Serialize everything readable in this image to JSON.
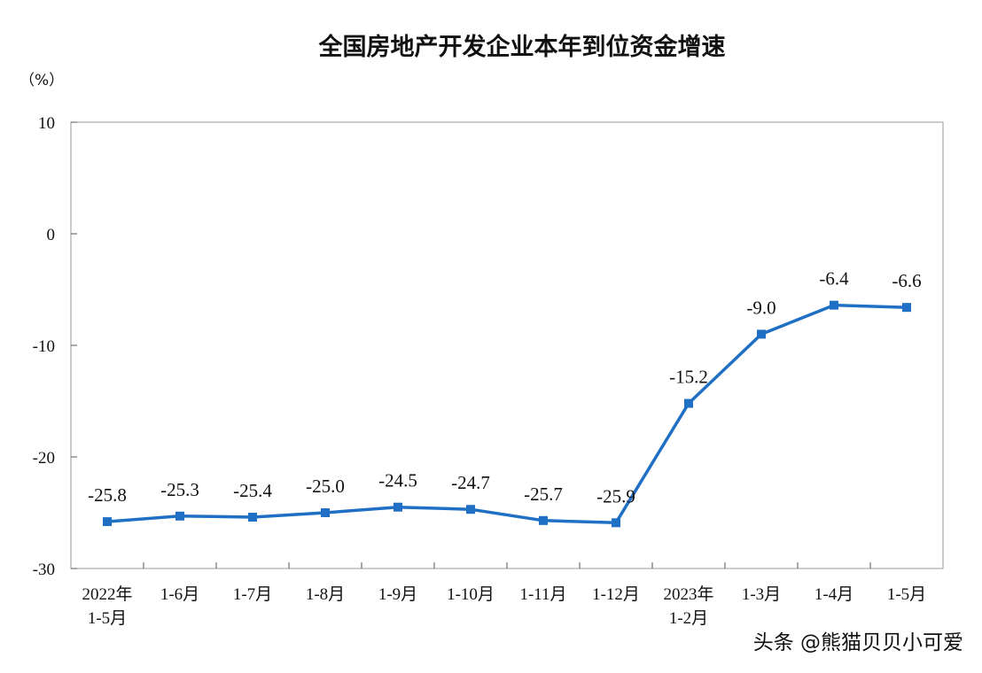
{
  "chart_data": {
    "type": "line",
    "title": "全国房地产开发企业本年到位资金增速",
    "unit": "（%）",
    "categories": [
      [
        "2022年",
        "1-5月"
      ],
      [
        "1-6月"
      ],
      [
        "1-7月"
      ],
      [
        "1-8月"
      ],
      [
        "1-9月"
      ],
      [
        "1-10月"
      ],
      [
        "1-11月"
      ],
      [
        "1-12月"
      ],
      [
        "2023年",
        "1-2月"
      ],
      [
        "1-3月"
      ],
      [
        "1-4月"
      ],
      [
        "1-5月"
      ]
    ],
    "values": [
      -25.8,
      -25.3,
      -25.4,
      -25.0,
      -24.5,
      -24.7,
      -25.7,
      -25.9,
      -15.2,
      -9.0,
      -6.4,
      -6.6
    ],
    "data_labels": [
      "-25.8",
      "-25.3",
      "-25.4",
      "-25.0",
      "-24.5",
      "-24.7",
      "-25.7",
      "-25.9",
      "-15.2",
      "-9.0",
      "-6.4",
      "-6.6"
    ],
    "ylim": [
      -30,
      10
    ],
    "yticks": [
      10,
      0,
      -10,
      -20,
      -30
    ],
    "grid": false,
    "line_color": "#1f6fc5"
  },
  "watermark": "头条 @熊猫贝贝小可爱"
}
